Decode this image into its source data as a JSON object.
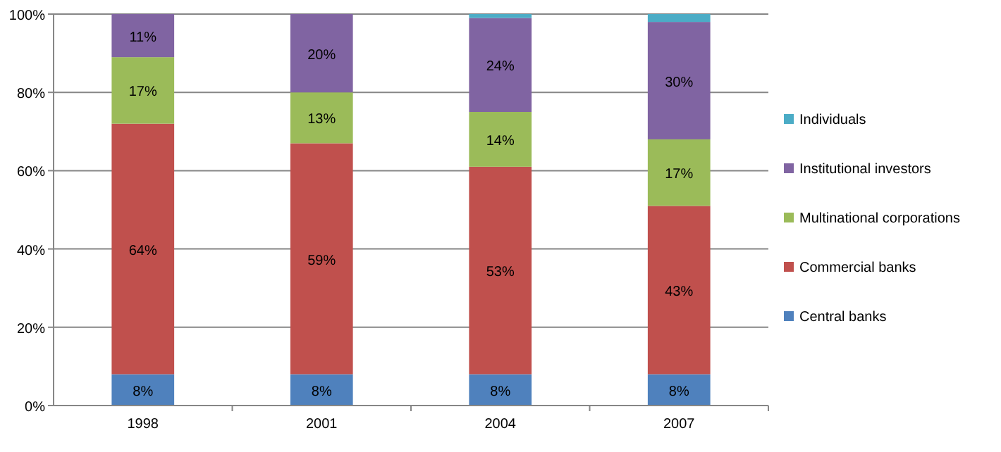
{
  "chart_data": {
    "type": "bar",
    "stacked": true,
    "categories": [
      "1998",
      "2001",
      "2004",
      "2007"
    ],
    "series": [
      {
        "name": "Central banks",
        "color": "#4f81bd",
        "values": [
          8,
          8,
          8,
          8
        ],
        "value_labels": [
          "8%",
          "8%",
          "8%",
          "8%"
        ]
      },
      {
        "name": "Commercial banks",
        "color": "#c0504d",
        "values": [
          64,
          59,
          53,
          43
        ],
        "value_labels": [
          "64%",
          "59%",
          "53%",
          "43%"
        ]
      },
      {
        "name": "Multinational corporations",
        "color": "#9bbb59",
        "values": [
          17,
          13,
          14,
          17
        ],
        "value_labels": [
          "17%",
          "13%",
          "14%",
          "17%"
        ]
      },
      {
        "name": "Institutional  investors",
        "color": "#8064a2",
        "values": [
          11,
          20,
          24,
          30
        ],
        "value_labels": [
          "11%",
          "20%",
          "24%",
          "30%"
        ]
      },
      {
        "name": "Individuals",
        "color": "#4bacc6",
        "values": [
          0,
          0,
          1,
          2
        ]
      }
    ],
    "ylim": [
      0,
      100
    ],
    "yticks": [
      {
        "value": 0,
        "label": "0%"
      },
      {
        "value": 20,
        "label": "20%"
      },
      {
        "value": 40,
        "label": "40%"
      },
      {
        "value": 60,
        "label": "60%"
      },
      {
        "value": 80,
        "label": "80%"
      },
      {
        "value": 100,
        "label": "100%"
      }
    ],
    "grid": "y",
    "legend": "right"
  }
}
